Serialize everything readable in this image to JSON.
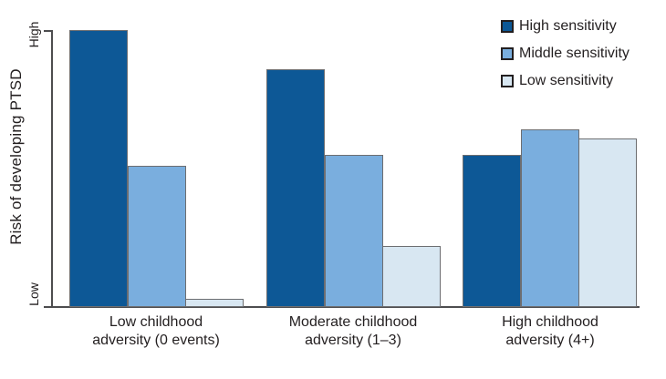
{
  "chart_data": {
    "type": "bar",
    "title": "",
    "xlabel": "",
    "ylabel": "Risk of developing PTSD",
    "y_axis_ticks": [
      "High",
      "Low"
    ],
    "ylim": [
      0,
      100
    ],
    "grid": false,
    "legend_position": "top-right",
    "categories": [
      "Low childhood adversity (0 events)",
      "Moderate childhood adversity (1–3)",
      "High childhood adversity (4+)"
    ],
    "series": [
      {
        "name": "High sensitivity",
        "color": "#0d5896",
        "values": [
          100,
          86,
          55
        ]
      },
      {
        "name": "Middle sensitivity",
        "color": "#7aaede",
        "values": [
          51,
          55,
          64
        ]
      },
      {
        "name": "Low sensitivity",
        "color": "#d8e7f2",
        "values": [
          3,
          22,
          61
        ]
      }
    ]
  },
  "axis": {
    "ylabel": "Risk of developing PTSD",
    "tick_high": "High",
    "tick_low": "Low"
  },
  "x_labels": [
    {
      "line1": "Low childhood",
      "line2": "adversity (0 events)"
    },
    {
      "line1": "Moderate childhood",
      "line2": "adversity (1–3)"
    },
    {
      "line1": "High childhood",
      "line2": "adversity (4+)"
    }
  ],
  "colors": {
    "high_sensitivity": "#0d5896",
    "middle_sensitivity": "#7aaede",
    "low_sensitivity": "#d8e7f2",
    "axis_line": "#4d4d4f",
    "bar_border": "#6d6e71",
    "text": "#231f20",
    "background": "#ffffff"
  }
}
